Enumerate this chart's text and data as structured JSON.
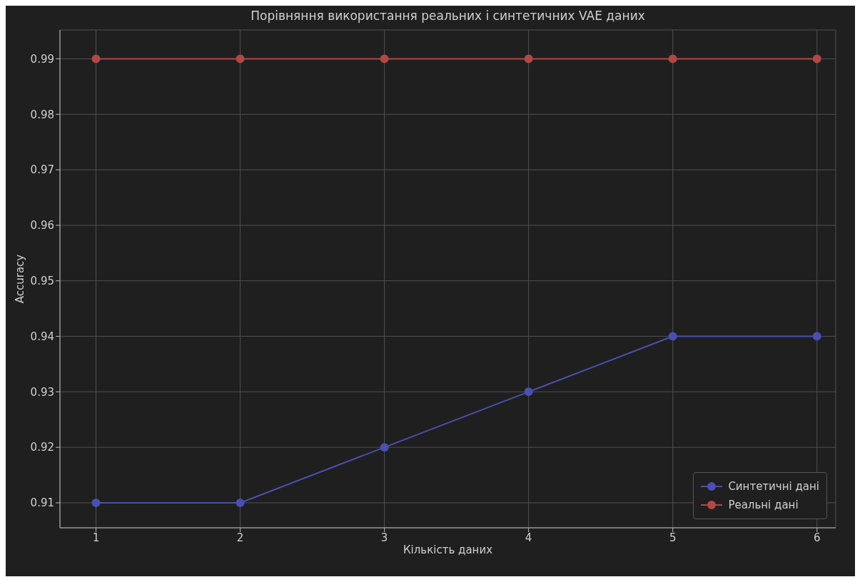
{
  "chart_data": {
    "type": "line",
    "title": "Порівняння використання реальних і синтетичних VAE даних",
    "xlabel": "Кількість даних",
    "ylabel": "Accuracy",
    "x": [
      1,
      2,
      3,
      4,
      5,
      6
    ],
    "series": [
      {
        "name": "Синтетичні дані",
        "color": "#4a4fb0",
        "values": [
          0.91,
          0.91,
          0.92,
          0.93,
          0.94,
          0.94
        ]
      },
      {
        "name": "Реальні дані",
        "color": "#b04848",
        "values": [
          0.99,
          0.99,
          0.99,
          0.99,
          0.99,
          0.99
        ]
      }
    ],
    "xlim": [
      0.75,
      6.13
    ],
    "xticks": [
      1,
      2,
      3,
      4,
      5,
      6
    ],
    "ylim": [
      0.9055,
      0.9952
    ],
    "yticks": [
      0.91,
      0.92,
      0.93,
      0.94,
      0.95,
      0.96,
      0.97,
      0.98,
      0.99
    ],
    "grid": true,
    "legend": "bottom right",
    "marker": "circle",
    "line_style": "solid"
  }
}
